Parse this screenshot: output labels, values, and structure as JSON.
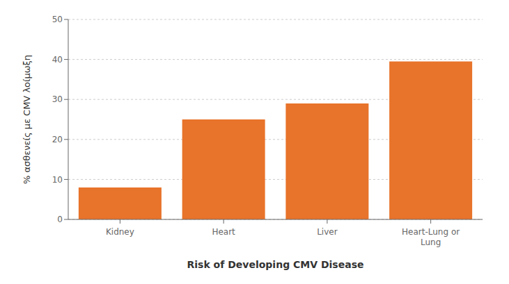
{
  "chart_data": {
    "type": "bar",
    "categories": [
      "Kidney",
      "Heart",
      "Liver",
      "Heart-Lung or\nLung"
    ],
    "values": [
      8,
      25,
      29,
      39.5
    ],
    "color": "#E8732A",
    "xlabel": "Risk of Developing CMV Disease",
    "ylabel": "% ασθενείς με CMV λοίμωξη",
    "ylim": [
      0,
      50
    ],
    "yticks": [
      0,
      10,
      20,
      30,
      40,
      50
    ],
    "grid": true
  }
}
